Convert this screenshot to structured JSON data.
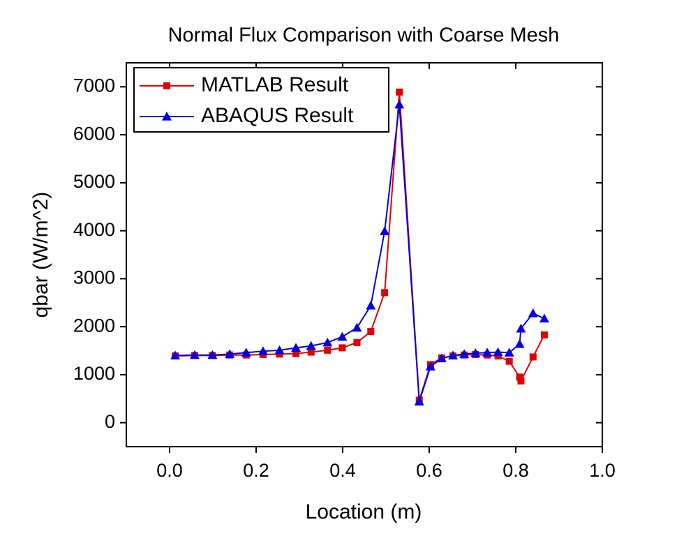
{
  "chart_data": {
    "type": "line",
    "title": "Normal Flux Comparison with Coarse Mesh",
    "x_label": "Location (m)",
    "y_label": "qbar (W/m^2)",
    "x": [
      0.013,
      0.058,
      0.099,
      0.139,
      0.177,
      0.216,
      0.254,
      0.292,
      0.327,
      0.365,
      0.399,
      0.433,
      0.465,
      0.497,
      0.531,
      0.577,
      0.603,
      0.629,
      0.655,
      0.681,
      0.707,
      0.734,
      0.759,
      0.785,
      0.809,
      0.812,
      0.84,
      0.866
    ],
    "series": [
      {
        "name": "MATLAB Result",
        "color": "#e00000",
        "marker": "square",
        "values": [
          1390,
          1400,
          1400,
          1410,
          1410,
          1420,
          1430,
          1440,
          1470,
          1510,
          1560,
          1670,
          1900,
          2710,
          6890,
          470,
          1210,
          1350,
          1390,
          1410,
          1420,
          1410,
          1390,
          1280,
          950,
          870,
          1370,
          1830
        ]
      },
      {
        "name": "ABAQUS Result",
        "color": "#0000e0",
        "marker": "triangle",
        "values": [
          1400,
          1410,
          1410,
          1430,
          1460,
          1490,
          1510,
          1560,
          1600,
          1670,
          1790,
          1980,
          2440,
          3990,
          6630,
          440,
          1170,
          1340,
          1400,
          1430,
          1450,
          1460,
          1470,
          1460,
          1640,
          1960,
          2280,
          2170
        ]
      }
    ],
    "xlim": [
      -0.1,
      1.0
    ],
    "ylim": [
      -500,
      7500
    ],
    "xticks": [
      {
        "value": 0,
        "label": "0.0"
      },
      0.2,
      0.4,
      0.6,
      0.8,
      {
        "value": 1,
        "label": "1.0"
      }
    ],
    "yticks": [
      0,
      1000,
      2000,
      3000,
      4000,
      5000,
      6000,
      7000
    ],
    "legend": "upper left",
    "grid": false
  }
}
